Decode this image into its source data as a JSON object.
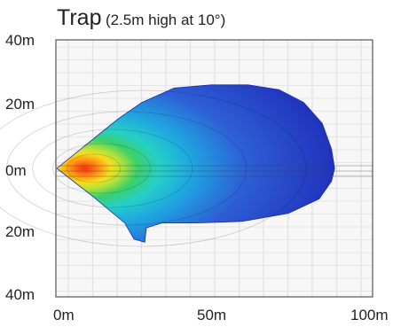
{
  "chart_data": {
    "type": "heatmap",
    "title": "Trap",
    "subtitle": "(2.5m high at 10°)",
    "y_ticks": [
      "40m",
      "20m",
      "0m",
      "20m",
      "40m"
    ],
    "x_ticks": [
      "0m",
      "50m",
      "100m"
    ],
    "xlim": [
      0,
      100
    ],
    "ylim": [
      -40,
      40
    ],
    "grid": true,
    "beam_outline": [
      [
        0,
        0
      ],
      [
        20,
        15.5
      ],
      [
        27.5,
        20.5
      ],
      [
        38,
        25
      ],
      [
        50,
        26
      ],
      [
        62,
        26
      ],
      [
        72,
        24.5
      ],
      [
        80,
        20.5
      ],
      [
        86,
        14
      ],
      [
        89,
        6
      ],
      [
        90,
        0
      ],
      [
        89,
        -4
      ],
      [
        85,
        -9.5
      ],
      [
        75,
        -14
      ],
      [
        60,
        -16.5
      ],
      [
        45,
        -17
      ],
      [
        34,
        -17
      ],
      [
        29,
        -18.5
      ],
      [
        28.5,
        -23
      ],
      [
        25,
        -22
      ],
      [
        22,
        -17
      ],
      [
        12,
        -9
      ],
      [
        0,
        0
      ]
    ],
    "hotspot_center": [
      9,
      0
    ],
    "color_scale": [
      "#1e2ab8",
      "#2e5fd6",
      "#1ea7e0",
      "#26d0c6",
      "#3ad06a",
      "#b4e23a",
      "#f3e01e",
      "#ff9a14",
      "#ff2a10"
    ]
  }
}
